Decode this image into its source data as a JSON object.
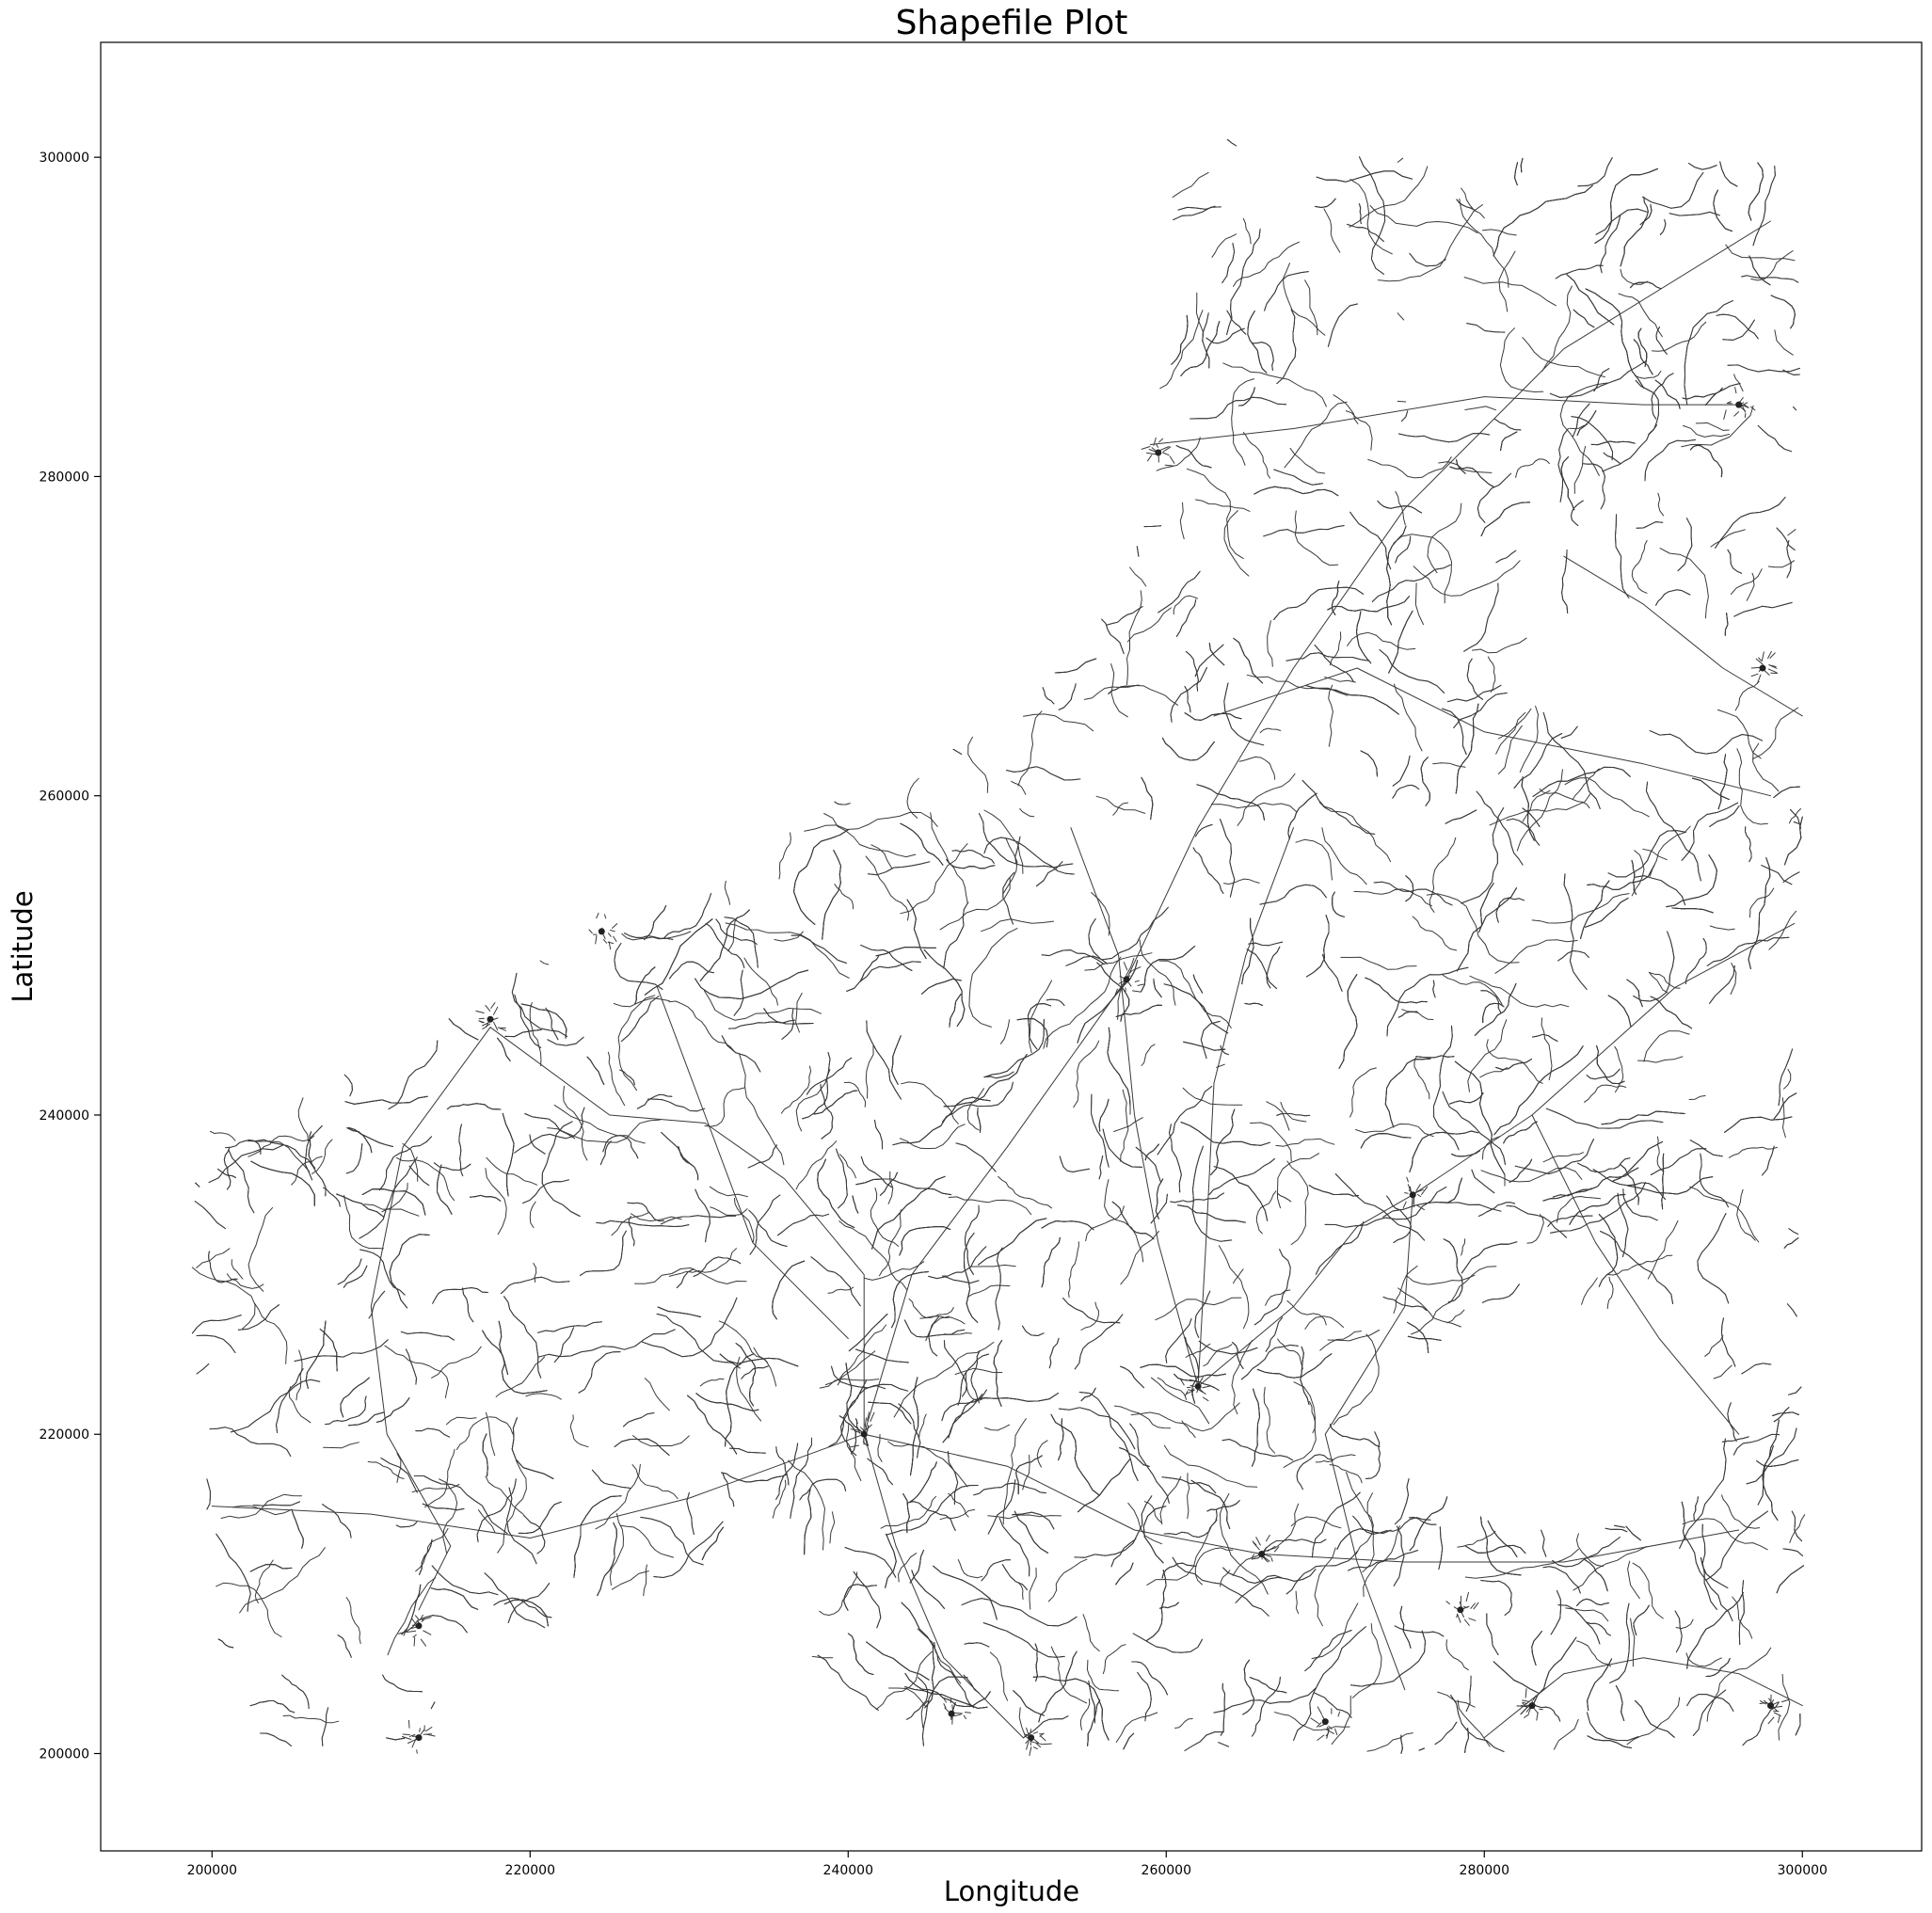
{
  "chart_data": {
    "type": "line",
    "title": "Shapefile Plot",
    "xlabel": "Longitude",
    "ylabel": "Latitude",
    "xlim": [
      193000,
      307500
    ],
    "ylim": [
      193900,
      307200
    ],
    "xticks": [
      200000,
      220000,
      240000,
      260000,
      280000,
      300000
    ],
    "yticks": [
      200000,
      220000,
      240000,
      260000,
      280000,
      300000
    ],
    "xtick_labels": [
      "200000",
      "220000",
      "240000",
      "260000",
      "280000",
      "300000"
    ],
    "ytick_labels": [
      "200000",
      "220000",
      "240000",
      "260000",
      "280000",
      "300000"
    ],
    "grid": false,
    "legend": "none",
    "line_color": "#3a3a3a",
    "series_description": "road network polylines",
    "region_outline": [
      [
        201000,
        200000
      ],
      [
        200000,
        212000
      ],
      [
        198500,
        225000
      ],
      [
        198800,
        236000
      ],
      [
        200000,
        239500
      ],
      [
        207000,
        242000
      ],
      [
        215000,
        246500
      ],
      [
        221000,
        250000
      ],
      [
        227000,
        252500
      ],
      [
        233000,
        255000
      ],
      [
        238000,
        259500
      ],
      [
        244000,
        261000
      ],
      [
        250000,
        266000
      ],
      [
        255000,
        270000
      ],
      [
        258000,
        275000
      ],
      [
        259000,
        281000
      ],
      [
        259500,
        288000
      ],
      [
        259000,
        294000
      ],
      [
        260500,
        296500
      ],
      [
        258000,
        300000
      ],
      [
        262000,
        300500
      ],
      [
        266500,
        302000
      ],
      [
        270000,
        300200
      ],
      [
        285000,
        300000
      ],
      [
        299500,
        300000
      ],
      [
        300000,
        290000
      ],
      [
        299500,
        270000
      ],
      [
        300500,
        262000
      ],
      [
        299500,
        250000
      ],
      [
        300500,
        244000
      ],
      [
        299800,
        230000
      ],
      [
        300200,
        215000
      ],
      [
        300000,
        200500
      ],
      [
        280000,
        200000
      ],
      [
        262000,
        200000
      ],
      [
        250000,
        200000
      ],
      [
        244000,
        200300
      ],
      [
        240500,
        201500
      ],
      [
        238000,
        204000
      ],
      [
        237000,
        208000
      ],
      [
        238500,
        211000
      ],
      [
        240000,
        213500
      ],
      [
        236000,
        211500
      ],
      [
        233000,
        212000
      ],
      [
        230000,
        210500
      ],
      [
        227000,
        208000
      ],
      [
        221000,
        207500
      ],
      [
        215000,
        207500
      ],
      [
        214500,
        205000
      ],
      [
        213500,
        201000
      ],
      [
        208000,
        200300
      ],
      [
        201000,
        200000
      ]
    ],
    "main_roads": [
      [
        [
          200000,
          215500
        ],
        [
          210000,
          215000
        ],
        [
          220000,
          213500
        ],
        [
          230000,
          216000
        ],
        [
          241000,
          220000
        ]
      ],
      [
        [
          241000,
          220000
        ],
        [
          250000,
          218000
        ],
        [
          258000,
          214000
        ],
        [
          266000,
          212500
        ],
        [
          275000,
          212000
        ],
        [
          285000,
          212000
        ],
        [
          296000,
          214000
        ]
      ],
      [
        [
          241000,
          220000
        ],
        [
          244000,
          230000
        ],
        [
          250000,
          238000
        ],
        [
          257500,
          248500
        ],
        [
          262000,
          258000
        ],
        [
          268000,
          268000
        ],
        [
          275000,
          278000
        ],
        [
          285000,
          288000
        ],
        [
          298000,
          296000
        ]
      ],
      [
        [
          217500,
          245500
        ],
        [
          225000,
          240000
        ],
        [
          231000,
          239500
        ],
        [
          236000,
          236000
        ],
        [
          241000,
          230000
        ],
        [
          241000,
          220000
        ]
      ],
      [
        [
          241000,
          220000
        ],
        [
          243000,
          213000
        ],
        [
          246000,
          206000
        ],
        [
          251000,
          201000
        ]
      ],
      [
        [
          262000,
          223000
        ],
        [
          268000,
          228000
        ],
        [
          272000,
          233000
        ],
        [
          275500,
          235000
        ],
        [
          283000,
          240000
        ],
        [
          292000,
          248000
        ],
        [
          299500,
          252000
        ]
      ],
      [
        [
          262000,
          223000
        ],
        [
          262500,
          232000
        ],
        [
          263000,
          242000
        ],
        [
          265000,
          250000
        ],
        [
          268000,
          258000
        ]
      ],
      [
        [
          280000,
          201000
        ],
        [
          285000,
          205000
        ],
        [
          290000,
          206000
        ],
        [
          296000,
          205000
        ],
        [
          300000,
          203000
        ]
      ],
      [
        [
          259000,
          282000
        ],
        [
          268000,
          283000
        ],
        [
          280000,
          285000
        ],
        [
          290000,
          284500
        ],
        [
          296000,
          284500
        ]
      ],
      [
        [
          285000,
          275000
        ],
        [
          290000,
          272000
        ],
        [
          295000,
          268000
        ],
        [
          300000,
          265000
        ]
      ],
      [
        [
          213000,
          209000
        ],
        [
          215000,
          213000
        ],
        [
          211000,
          220000
        ],
        [
          210000,
          228000
        ],
        [
          212000,
          238000
        ],
        [
          217500,
          245500
        ]
      ],
      [
        [
          275000,
          204000
        ],
        [
          272000,
          212000
        ],
        [
          270000,
          220000
        ],
        [
          275000,
          228000
        ],
        [
          275500,
          235000
        ]
      ],
      [
        [
          228000,
          248000
        ],
        [
          231000,
          240000
        ],
        [
          234000,
          232000
        ],
        [
          240000,
          226000
        ]
      ],
      [
        [
          254000,
          258000
        ],
        [
          257000,
          250000
        ],
        [
          258000,
          240000
        ],
        [
          259500,
          232000
        ],
        [
          262000,
          223000
        ]
      ],
      [
        [
          283000,
          240000
        ],
        [
          287000,
          232000
        ],
        [
          291000,
          226000
        ],
        [
          296000,
          220000
        ]
      ],
      [
        [
          263000,
          265000
        ],
        [
          272000,
          268000
        ],
        [
          280000,
          264000
        ],
        [
          290000,
          262000
        ],
        [
          298000,
          260000
        ]
      ]
    ],
    "towns": [
      {
        "x": 241000,
        "y": 220000
      },
      {
        "x": 217500,
        "y": 246000
      },
      {
        "x": 257500,
        "y": 248500
      },
      {
        "x": 251500,
        "y": 201000
      },
      {
        "x": 275500,
        "y": 235000
      },
      {
        "x": 262000,
        "y": 223000
      },
      {
        "x": 259500,
        "y": 281500
      },
      {
        "x": 296000,
        "y": 284500
      },
      {
        "x": 297500,
        "y": 268000
      },
      {
        "x": 298000,
        "y": 203000
      },
      {
        "x": 270000,
        "y": 202000
      },
      {
        "x": 213000,
        "y": 201000
      },
      {
        "x": 213000,
        "y": 208000
      },
      {
        "x": 283000,
        "y": 203000
      },
      {
        "x": 266000,
        "y": 212500
      },
      {
        "x": 224500,
        "y": 251500
      },
      {
        "x": 246500,
        "y": 202500
      },
      {
        "x": 278500,
        "y": 209000
      }
    ]
  }
}
